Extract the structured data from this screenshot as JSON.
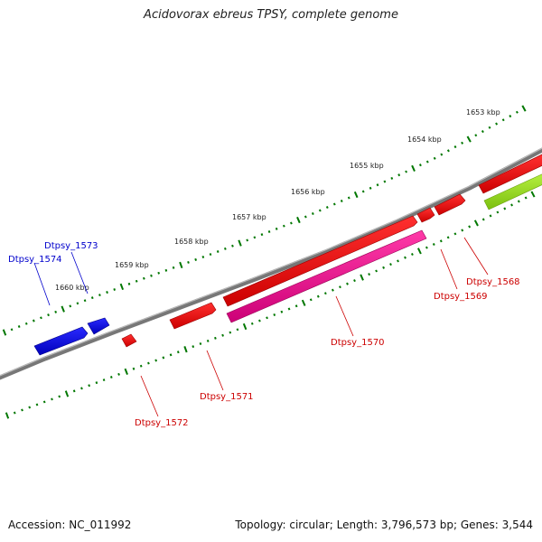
{
  "title": "Acidovorax ebreus TPSY, complete genome",
  "footer": {
    "accession": "Accession: NC_011992",
    "topology": "Topology: circular; Length: 3,796,573 bp; Genes: 3,544"
  },
  "scale_ticks": [
    {
      "label": "1653 kbp",
      "kbp": 1653
    },
    {
      "label": "1654 kbp",
      "kbp": 1654
    },
    {
      "label": "1655 kbp",
      "kbp": 1655
    },
    {
      "label": "1656 kbp",
      "kbp": 1656
    },
    {
      "label": "1657 kbp",
      "kbp": 1657
    },
    {
      "label": "1658 kbp",
      "kbp": 1658
    },
    {
      "label": "1659 kbp",
      "kbp": 1659
    },
    {
      "label": "1660 kbp",
      "kbp": 1660
    }
  ],
  "gene_labels": [
    {
      "name": "Dtpsy_1574",
      "color": "#0000cc"
    },
    {
      "name": "Dtpsy_1573",
      "color": "#0000cc"
    },
    {
      "name": "Dtpsy_1572",
      "color": "#cc0000"
    },
    {
      "name": "Dtpsy_1571",
      "color": "#cc0000"
    },
    {
      "name": "Dtpsy_1570",
      "color": "#cc0000"
    },
    {
      "name": "Dtpsy_1569",
      "color": "#cc0000"
    },
    {
      "name": "Dtpsy_1568",
      "color": "#cc0000"
    }
  ],
  "colors": {
    "backbone": "#777777",
    "forward_gene": "#ee0000",
    "reverse_gene": "#0000ee",
    "rna_gene": "#ff1493",
    "other_feature": "#99dd22",
    "ticks": "#007700"
  }
}
